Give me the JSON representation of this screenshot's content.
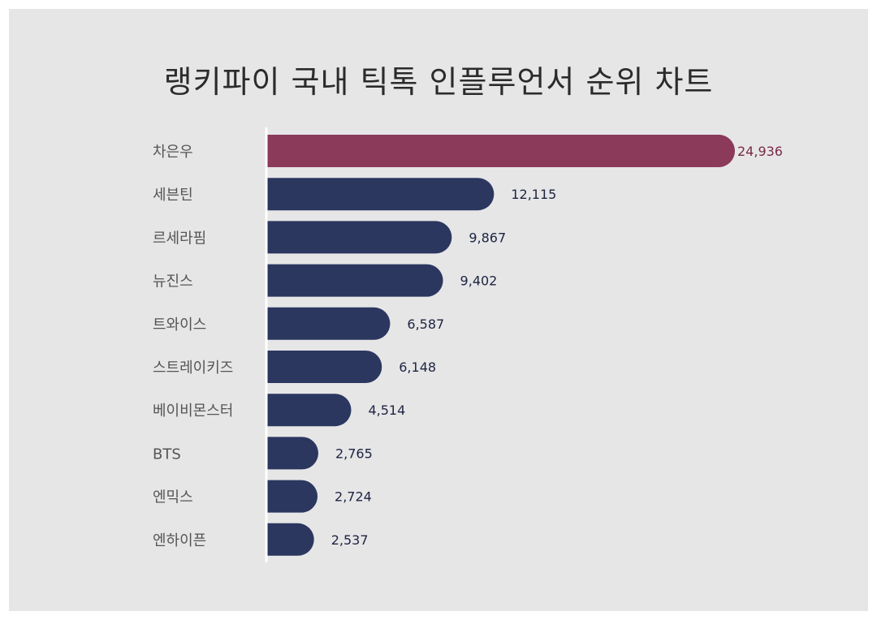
{
  "chart_data": {
    "type": "bar",
    "orientation": "horizontal",
    "title": "랭키파이 국내 틱톡 인플루언서 순위 차트",
    "categories": [
      "차은우",
      "세븐틴",
      "르세라핌",
      "뉴진스",
      "트와이스",
      "스트레이키즈",
      "베이비몬스터",
      "BTS",
      "엔믹스",
      "엔하이픈"
    ],
    "values": [
      24936,
      12115,
      9867,
      9402,
      6587,
      6148,
      4514,
      2765,
      2724,
      2537
    ],
    "value_labels": [
      "24,936",
      "12,115",
      "9,867",
      "9,402",
      "6,587",
      "6,148",
      "4,514",
      "2,765",
      "2,724",
      "2,537"
    ],
    "xlim": [
      0,
      24936
    ],
    "grid": false,
    "highlight_index": 0,
    "colors": {
      "bar": "#2c3760",
      "highlight": "#8b3a59",
      "value_text": "#1d2340",
      "highlight_text": "#7a2a47",
      "axis_line": "#ffffff"
    }
  }
}
